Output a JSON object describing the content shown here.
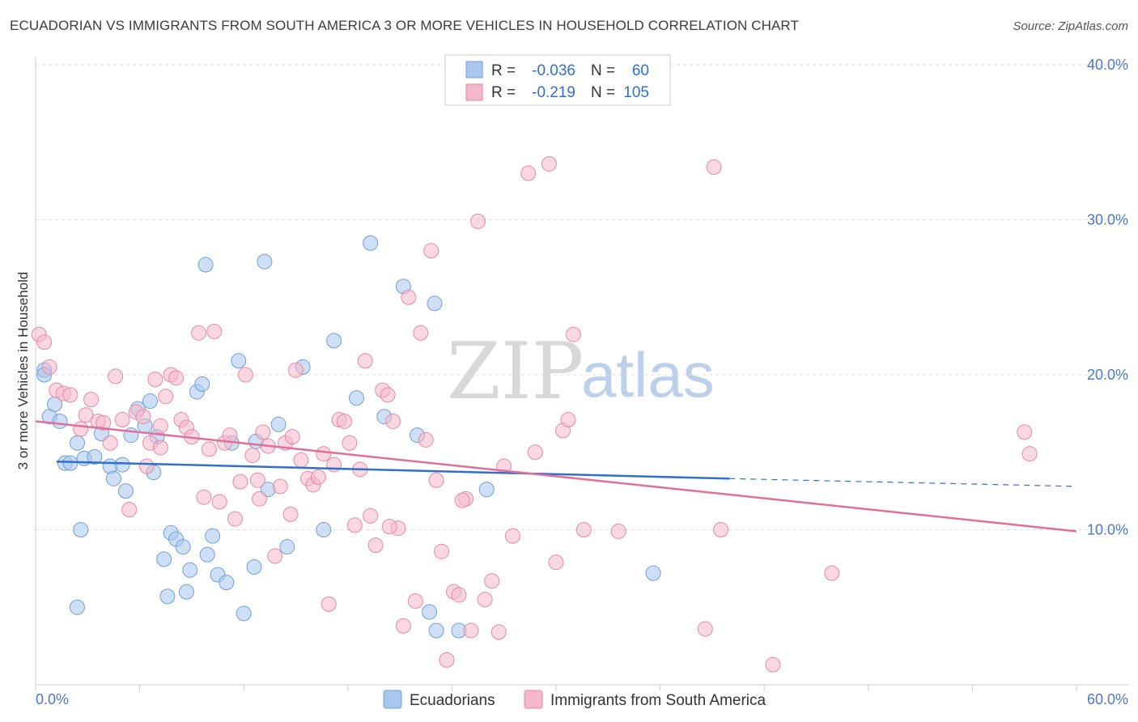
{
  "title": "ECUADORIAN VS IMMIGRANTS FROM SOUTH AMERICA 3 OR MORE VEHICLES IN HOUSEHOLD CORRELATION CHART",
  "source": "Source: ZipAtlas.com",
  "watermark": {
    "zip": "ZIP",
    "atlas": "atlas"
  },
  "legend": {
    "r_label": "R =",
    "n_label": "N =",
    "rows": [
      {
        "r": "-0.036",
        "n": "60",
        "color": "#a8c6ee"
      },
      {
        "r": "-0.219",
        "n": "105",
        "color": "#f5b8ca"
      }
    ]
  },
  "chart_data": {
    "type": "scatter",
    "xlabel": "",
    "ylabel": "3 or more Vehicles in Household",
    "xlim": [
      0,
      60
    ],
    "ylim": [
      0,
      40
    ],
    "x_tick_labels": [
      "0.0%",
      "60.0%"
    ],
    "y_ticks": [
      10,
      20,
      30,
      40
    ],
    "y_tick_labels": [
      "10.0%",
      "20.0%",
      "30.0%",
      "40.0%"
    ],
    "grid": true,
    "series": [
      {
        "name": "Ecuadorians",
        "color": "#a8c6ee",
        "stroke": "#6f9fd8",
        "trend": {
          "x0": 1.2,
          "y0": 14.4,
          "x1": 40.0,
          "y1": 13.3,
          "x2": 60.0,
          "y2": 12.8,
          "color": "#2f6fcf"
        },
        "points": [
          [
            0.5,
            20.3
          ],
          [
            0.5,
            20.0
          ],
          [
            0.8,
            17.3
          ],
          [
            1.1,
            18.1
          ],
          [
            1.4,
            17.0
          ],
          [
            1.7,
            14.3
          ],
          [
            2.0,
            14.3
          ],
          [
            2.4,
            15.6
          ],
          [
            2.6,
            10.0
          ],
          [
            2.8,
            14.6
          ],
          [
            3.4,
            14.7
          ],
          [
            3.8,
            16.2
          ],
          [
            4.3,
            14.1
          ],
          [
            4.5,
            13.3
          ],
          [
            5.0,
            14.2
          ],
          [
            5.2,
            12.5
          ],
          [
            5.5,
            16.1
          ],
          [
            5.9,
            17.8
          ],
          [
            6.3,
            16.7
          ],
          [
            6.6,
            18.3
          ],
          [
            6.8,
            13.7
          ],
          [
            7.0,
            16.0
          ],
          [
            7.4,
            8.1
          ],
          [
            7.8,
            9.8
          ],
          [
            8.1,
            9.4
          ],
          [
            8.5,
            8.9
          ],
          [
            8.9,
            7.4
          ],
          [
            9.3,
            18.9
          ],
          [
            9.6,
            19.4
          ],
          [
            9.9,
            8.4
          ],
          [
            10.2,
            9.6
          ],
          [
            10.5,
            7.1
          ],
          [
            11.0,
            6.6
          ],
          [
            11.3,
            15.6
          ],
          [
            11.7,
            20.9
          ],
          [
            12.0,
            4.6
          ],
          [
            12.6,
            7.6
          ],
          [
            13.4,
            12.6
          ],
          [
            14.0,
            16.8
          ],
          [
            14.5,
            8.9
          ],
          [
            15.4,
            20.5
          ],
          [
            16.6,
            10.0
          ],
          [
            17.2,
            22.2
          ],
          [
            18.5,
            18.5
          ],
          [
            19.3,
            28.5
          ],
          [
            20.1,
            17.3
          ],
          [
            21.2,
            25.7
          ],
          [
            23.0,
            24.6
          ],
          [
            23.1,
            3.5
          ],
          [
            22.7,
            4.7
          ],
          [
            26.0,
            12.6
          ],
          [
            35.6,
            7.2
          ],
          [
            9.8,
            27.1
          ],
          [
            13.2,
            27.3
          ],
          [
            2.4,
            5.0
          ],
          [
            7.6,
            5.7
          ],
          [
            8.7,
            6.0
          ],
          [
            22.0,
            16.1
          ],
          [
            12.7,
            15.7
          ],
          [
            24.4,
            3.5
          ]
        ]
      },
      {
        "name": "Immigrants from South America",
        "color": "#f5b8ca",
        "stroke": "#e58aa6",
        "trend": {
          "x0": 0.0,
          "y0": 17.0,
          "x1": 60.0,
          "y1": 9.9,
          "color": "#e0709a"
        },
        "points": [
          [
            0.2,
            22.6
          ],
          [
            0.5,
            22.1
          ],
          [
            0.8,
            20.5
          ],
          [
            1.2,
            19.0
          ],
          [
            1.6,
            18.8
          ],
          [
            2.0,
            18.7
          ],
          [
            2.6,
            16.5
          ],
          [
            2.9,
            17.4
          ],
          [
            3.2,
            18.4
          ],
          [
            3.6,
            17.0
          ],
          [
            3.9,
            16.9
          ],
          [
            4.3,
            15.6
          ],
          [
            4.6,
            19.9
          ],
          [
            5.0,
            17.1
          ],
          [
            5.4,
            11.3
          ],
          [
            5.8,
            17.6
          ],
          [
            6.2,
            17.3
          ],
          [
            6.6,
            15.6
          ],
          [
            6.9,
            19.7
          ],
          [
            7.2,
            15.3
          ],
          [
            7.5,
            18.6
          ],
          [
            7.8,
            20.0
          ],
          [
            8.1,
            19.8
          ],
          [
            8.4,
            17.1
          ],
          [
            8.7,
            16.6
          ],
          [
            9.0,
            16.0
          ],
          [
            9.4,
            22.7
          ],
          [
            9.7,
            12.1
          ],
          [
            10.0,
            15.2
          ],
          [
            10.3,
            22.8
          ],
          [
            10.6,
            11.8
          ],
          [
            10.9,
            15.6
          ],
          [
            11.2,
            16.1
          ],
          [
            11.5,
            10.7
          ],
          [
            11.8,
            13.1
          ],
          [
            12.1,
            20.0
          ],
          [
            12.5,
            14.8
          ],
          [
            12.8,
            13.2
          ],
          [
            13.1,
            16.3
          ],
          [
            13.4,
            15.4
          ],
          [
            13.8,
            8.3
          ],
          [
            14.1,
            12.8
          ],
          [
            14.4,
            15.6
          ],
          [
            14.7,
            11.0
          ],
          [
            15.0,
            20.3
          ],
          [
            15.3,
            14.5
          ],
          [
            15.7,
            13.3
          ],
          [
            16.0,
            12.9
          ],
          [
            16.3,
            13.4
          ],
          [
            16.6,
            14.9
          ],
          [
            16.9,
            5.2
          ],
          [
            17.2,
            14.2
          ],
          [
            17.5,
            17.1
          ],
          [
            17.8,
            17.0
          ],
          [
            18.1,
            15.6
          ],
          [
            18.4,
            10.3
          ],
          [
            18.7,
            13.9
          ],
          [
            19.0,
            20.9
          ],
          [
            19.3,
            10.9
          ],
          [
            19.6,
            9.0
          ],
          [
            20.0,
            19.0
          ],
          [
            20.3,
            18.7
          ],
          [
            20.6,
            17.0
          ],
          [
            20.9,
            10.1
          ],
          [
            21.2,
            3.8
          ],
          [
            21.5,
            25.0
          ],
          [
            21.9,
            5.4
          ],
          [
            22.2,
            22.7
          ],
          [
            22.5,
            15.8
          ],
          [
            22.8,
            28.0
          ],
          [
            23.1,
            13.2
          ],
          [
            23.4,
            8.6
          ],
          [
            23.7,
            1.6
          ],
          [
            24.1,
            6.0
          ],
          [
            24.4,
            5.8
          ],
          [
            24.8,
            12.0
          ],
          [
            25.1,
            3.5
          ],
          [
            25.5,
            29.9
          ],
          [
            25.9,
            5.5
          ],
          [
            26.3,
            6.7
          ],
          [
            26.7,
            3.4
          ],
          [
            27.0,
            14.1
          ],
          [
            27.5,
            9.6
          ],
          [
            28.4,
            33.0
          ],
          [
            28.8,
            15.0
          ],
          [
            29.6,
            33.6
          ],
          [
            30.0,
            7.9
          ],
          [
            30.4,
            16.4
          ],
          [
            30.7,
            17.1
          ],
          [
            31.0,
            22.6
          ],
          [
            31.6,
            10.0
          ],
          [
            33.6,
            9.9
          ],
          [
            38.6,
            3.6
          ],
          [
            39.1,
            33.4
          ],
          [
            39.5,
            10.0
          ],
          [
            42.5,
            1.3
          ],
          [
            45.9,
            7.2
          ],
          [
            57.0,
            16.3
          ],
          [
            57.3,
            14.9
          ],
          [
            20.4,
            10.2
          ],
          [
            12.9,
            12.0
          ],
          [
            14.8,
            16.0
          ],
          [
            6.4,
            14.1
          ],
          [
            24.6,
            11.9
          ],
          [
            7.2,
            16.7
          ]
        ]
      }
    ]
  },
  "bottom_legend": [
    {
      "label": "Ecuadorians",
      "color": "#a8c6ee"
    },
    {
      "label": "Immigrants from South America",
      "color": "#f5b8ca"
    }
  ]
}
